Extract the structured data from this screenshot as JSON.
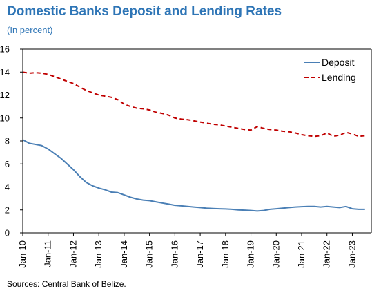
{
  "header": {
    "title": "Domestic Banks Deposit and Lending Rates",
    "subtitle": "(In percent)"
  },
  "footer": {
    "source": "Sources: Central Bank of Belize."
  },
  "chart_data": {
    "type": "line",
    "title": "Domestic Banks Deposit and Lending Rates",
    "subtitle": "(In percent)",
    "ylim": [
      0,
      16
    ],
    "yticks": [
      0,
      2,
      4,
      6,
      8,
      10,
      12,
      14,
      16
    ],
    "xlim": [
      2010.0,
      2023.75
    ],
    "xticks": [
      "Jan-10",
      "Jan-11",
      "Jan-12",
      "Jan-13",
      "Jan-14",
      "Jan-15",
      "Jan-16",
      "Jan-17",
      "Jan-18",
      "Jan-19",
      "Jan-20",
      "Jan-21",
      "Jan-22",
      "Jan-23"
    ],
    "grid": false,
    "legend": "top-right",
    "series": [
      {
        "name": "Deposit",
        "color": "#4a7fb5",
        "style": "solid",
        "points": [
          [
            2010.0,
            8.1
          ],
          [
            2010.25,
            7.8
          ],
          [
            2010.5,
            7.7
          ],
          [
            2010.75,
            7.6
          ],
          [
            2011.0,
            7.3
          ],
          [
            2011.25,
            6.9
          ],
          [
            2011.5,
            6.5
          ],
          [
            2011.75,
            6.0
          ],
          [
            2012.0,
            5.5
          ],
          [
            2012.25,
            4.9
          ],
          [
            2012.5,
            4.4
          ],
          [
            2012.75,
            4.1
          ],
          [
            2013.0,
            3.9
          ],
          [
            2013.25,
            3.75
          ],
          [
            2013.5,
            3.55
          ],
          [
            2013.75,
            3.5
          ],
          [
            2014.0,
            3.3
          ],
          [
            2014.25,
            3.1
          ],
          [
            2014.5,
            2.95
          ],
          [
            2014.75,
            2.85
          ],
          [
            2015.0,
            2.8
          ],
          [
            2015.25,
            2.7
          ],
          [
            2015.5,
            2.6
          ],
          [
            2015.75,
            2.5
          ],
          [
            2016.0,
            2.4
          ],
          [
            2016.25,
            2.35
          ],
          [
            2016.5,
            2.3
          ],
          [
            2016.75,
            2.25
          ],
          [
            2017.0,
            2.2
          ],
          [
            2017.25,
            2.15
          ],
          [
            2017.5,
            2.12
          ],
          [
            2017.75,
            2.1
          ],
          [
            2018.0,
            2.08
          ],
          [
            2018.25,
            2.05
          ],
          [
            2018.5,
            2.0
          ],
          [
            2018.75,
            1.98
          ],
          [
            2019.0,
            1.95
          ],
          [
            2019.25,
            1.9
          ],
          [
            2019.5,
            1.95
          ],
          [
            2019.75,
            2.05
          ],
          [
            2020.0,
            2.1
          ],
          [
            2020.25,
            2.15
          ],
          [
            2020.5,
            2.2
          ],
          [
            2020.75,
            2.25
          ],
          [
            2021.0,
            2.28
          ],
          [
            2021.25,
            2.3
          ],
          [
            2021.5,
            2.3
          ],
          [
            2021.75,
            2.25
          ],
          [
            2022.0,
            2.3
          ],
          [
            2022.25,
            2.25
          ],
          [
            2022.5,
            2.2
          ],
          [
            2022.75,
            2.3
          ],
          [
            2023.0,
            2.1
          ],
          [
            2023.25,
            2.05
          ],
          [
            2023.5,
            2.05
          ]
        ]
      },
      {
        "name": "Lending",
        "color": "#c00000",
        "style": "dashed",
        "points": [
          [
            2010.0,
            14.0
          ],
          [
            2010.25,
            13.9
          ],
          [
            2010.5,
            13.95
          ],
          [
            2010.75,
            13.9
          ],
          [
            2011.0,
            13.8
          ],
          [
            2011.25,
            13.6
          ],
          [
            2011.5,
            13.4
          ],
          [
            2011.75,
            13.2
          ],
          [
            2012.0,
            13.0
          ],
          [
            2012.25,
            12.7
          ],
          [
            2012.5,
            12.4
          ],
          [
            2012.75,
            12.2
          ],
          [
            2013.0,
            12.0
          ],
          [
            2013.25,
            11.9
          ],
          [
            2013.5,
            11.8
          ],
          [
            2013.75,
            11.6
          ],
          [
            2014.0,
            11.2
          ],
          [
            2014.25,
            11.0
          ],
          [
            2014.5,
            10.85
          ],
          [
            2014.75,
            10.8
          ],
          [
            2015.0,
            10.7
          ],
          [
            2015.25,
            10.5
          ],
          [
            2015.5,
            10.4
          ],
          [
            2015.75,
            10.25
          ],
          [
            2016.0,
            10.0
          ],
          [
            2016.25,
            9.9
          ],
          [
            2016.5,
            9.85
          ],
          [
            2016.75,
            9.75
          ],
          [
            2017.0,
            9.65
          ],
          [
            2017.25,
            9.55
          ],
          [
            2017.5,
            9.45
          ],
          [
            2017.75,
            9.4
          ],
          [
            2018.0,
            9.3
          ],
          [
            2018.25,
            9.2
          ],
          [
            2018.5,
            9.1
          ],
          [
            2018.75,
            9.0
          ],
          [
            2019.0,
            8.95
          ],
          [
            2019.25,
            9.25
          ],
          [
            2019.5,
            9.1
          ],
          [
            2019.75,
            9.0
          ],
          [
            2020.0,
            8.95
          ],
          [
            2020.25,
            8.85
          ],
          [
            2020.5,
            8.8
          ],
          [
            2020.75,
            8.7
          ],
          [
            2021.0,
            8.55
          ],
          [
            2021.25,
            8.45
          ],
          [
            2021.5,
            8.4
          ],
          [
            2021.75,
            8.45
          ],
          [
            2022.0,
            8.7
          ],
          [
            2022.25,
            8.4
          ],
          [
            2022.5,
            8.5
          ],
          [
            2022.75,
            8.75
          ],
          [
            2023.0,
            8.6
          ],
          [
            2023.25,
            8.4
          ],
          [
            2023.5,
            8.45
          ]
        ]
      }
    ]
  }
}
